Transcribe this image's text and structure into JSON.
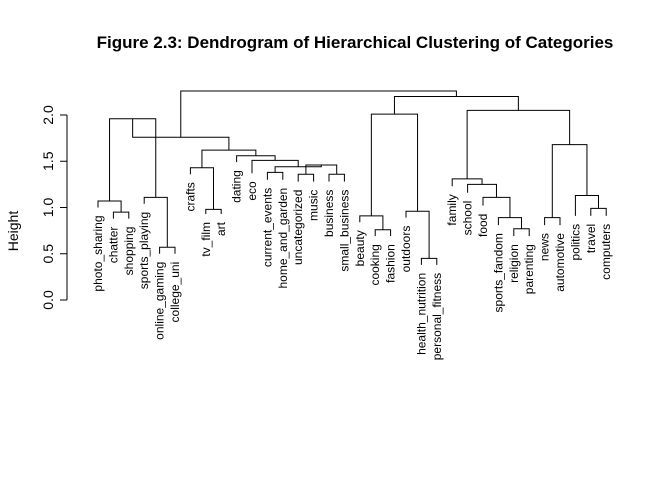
{
  "chart_data": {
    "type": "dendrogram",
    "title": "Figure 2.3: Dendrogram of Hierarchical Clustering of Categories",
    "ylabel": "Height",
    "ylim": [
      0,
      2.25
    ],
    "yticks": [
      {
        "value": 0.0,
        "label": "0.0"
      },
      {
        "value": 0.5,
        "label": "0.5"
      },
      {
        "value": 1.0,
        "label": "1.0"
      },
      {
        "value": 1.5,
        "label": "1.5"
      },
      {
        "value": 2.0,
        "label": "2.0"
      }
    ],
    "leaves": [
      {
        "label": "photo_sharing",
        "height": 1.0
      },
      {
        "label": "chatter",
        "height": 0.88
      },
      {
        "label": "shopping",
        "height": 0.88
      },
      {
        "label": "sports_playing",
        "height": 1.04
      },
      {
        "label": "online_gaming",
        "height": 0.5
      },
      {
        "label": "college_uni",
        "height": 0.5
      },
      {
        "label": "crafts",
        "height": 1.36
      },
      {
        "label": "tv_film",
        "height": 0.93
      },
      {
        "label": "art",
        "height": 0.93
      },
      {
        "label": "dating",
        "height": 1.49
      },
      {
        "label": "eco",
        "height": 1.37
      },
      {
        "label": "current_events",
        "height": 1.3
      },
      {
        "label": "home_and_garden",
        "height": 1.3
      },
      {
        "label": "uncategorized",
        "height": 1.28
      },
      {
        "label": "music",
        "height": 1.28
      },
      {
        "label": "business",
        "height": 1.28
      },
      {
        "label": "small_business",
        "height": 1.28
      },
      {
        "label": "beauty",
        "height": 0.84
      },
      {
        "label": "cooking",
        "height": 0.69
      },
      {
        "label": "fashion",
        "height": 0.69
      },
      {
        "label": "outdoors",
        "height": 0.89
      },
      {
        "label": "health_nutrition",
        "height": 0.38
      },
      {
        "label": "personal_fitness",
        "height": 0.38
      },
      {
        "label": "family",
        "height": 1.23
      },
      {
        "label": "school",
        "height": 1.16
      },
      {
        "label": "food",
        "height": 1.02
      },
      {
        "label": "sports_fandom",
        "height": 0.81
      },
      {
        "label": "religion",
        "height": 0.69
      },
      {
        "label": "parenting",
        "height": 0.69
      },
      {
        "label": "news",
        "height": 0.81
      },
      {
        "label": "automotive",
        "height": 0.81
      },
      {
        "label": "politics",
        "height": 0.91
      },
      {
        "label": "travel",
        "height": 0.91
      },
      {
        "label": "computers",
        "height": 0.91
      }
    ],
    "merges": [
      [
        1,
        2,
        0.95
      ],
      [
        0,
        34,
        1.07
      ],
      [
        4,
        5,
        0.57
      ],
      [
        3,
        36,
        1.11
      ],
      [
        35,
        37,
        1.96
      ],
      [
        7,
        8,
        0.98
      ],
      [
        6,
        39,
        1.43
      ],
      [
        11,
        12,
        1.38
      ],
      [
        13,
        14,
        1.36
      ],
      [
        15,
        16,
        1.36
      ],
      [
        42,
        43,
        1.46
      ],
      [
        41,
        44,
        1.44
      ],
      [
        10,
        45,
        1.51
      ],
      [
        9,
        46,
        1.56
      ],
      [
        40,
        47,
        1.62
      ],
      [
        38,
        48,
        1.76
      ],
      [
        18,
        19,
        0.76
      ],
      [
        17,
        50,
        0.91
      ],
      [
        21,
        22,
        0.45
      ],
      [
        20,
        52,
        0.96
      ],
      [
        51,
        53,
        2.01
      ],
      [
        27,
        28,
        0.77
      ],
      [
        26,
        55,
        0.89
      ],
      [
        25,
        56,
        1.11
      ],
      [
        24,
        57,
        1.25
      ],
      [
        23,
        58,
        1.31
      ],
      [
        29,
        30,
        0.89
      ],
      [
        32,
        33,
        0.99
      ],
      [
        31,
        61,
        1.13
      ],
      [
        60,
        62,
        1.68
      ],
      [
        59,
        63,
        2.05
      ],
      [
        54,
        64,
        2.2
      ],
      [
        49,
        65,
        2.26
      ]
    ]
  }
}
